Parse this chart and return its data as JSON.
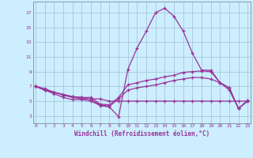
{
  "xlabel": "Windchill (Refroidissement éolien,°C)",
  "background_color": "#cceeff",
  "grid_color": "#aaccdd",
  "line_color": "#993399",
  "x_ticks": [
    0,
    1,
    2,
    3,
    4,
    5,
    6,
    7,
    8,
    9,
    10,
    11,
    12,
    13,
    14,
    15,
    16,
    17,
    18,
    19,
    20,
    21,
    22,
    23
  ],
  "y_ticks": [
    3,
    5,
    7,
    9,
    11,
    13,
    15,
    17
  ],
  "ylim": [
    2.0,
    18.5
  ],
  "xlim": [
    -0.3,
    23.3
  ],
  "series": [
    [
      7.0,
      6.5,
      6.0,
      5.5,
      5.2,
      5.2,
      5.0,
      4.4,
      4.2,
      2.9,
      9.3,
      12.2,
      14.5,
      17.0,
      17.6,
      16.5,
      14.5,
      11.5,
      9.2,
      9.2,
      7.5,
      6.5,
      4.0,
      5.1
    ],
    [
      7.0,
      6.5,
      6.2,
      5.8,
      5.5,
      5.3,
      5.3,
      5.3,
      5.0,
      5.0,
      5.0,
      5.0,
      5.0,
      5.0,
      5.0,
      5.0,
      5.0,
      5.0,
      5.0,
      5.0,
      5.0,
      5.0,
      5.0,
      5.0
    ],
    [
      7.0,
      6.7,
      6.2,
      5.9,
      5.6,
      5.5,
      5.5,
      4.6,
      4.5,
      5.5,
      7.2,
      7.5,
      7.8,
      8.0,
      8.3,
      8.5,
      8.9,
      9.0,
      9.1,
      9.0,
      7.5,
      6.8,
      4.0,
      5.1
    ],
    [
      7.0,
      6.5,
      6.2,
      5.9,
      5.6,
      5.5,
      5.2,
      4.5,
      4.3,
      5.3,
      6.5,
      6.8,
      7.0,
      7.2,
      7.5,
      7.8,
      8.0,
      8.2,
      8.2,
      8.0,
      7.5,
      6.8,
      4.0,
      5.0
    ]
  ]
}
